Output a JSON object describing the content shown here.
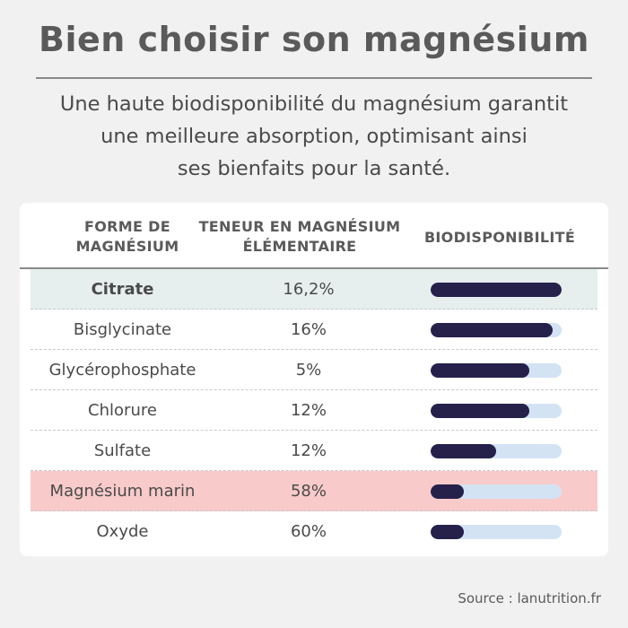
{
  "title": "Bien choisir son magnésium",
  "subtitle": [
    "Une haute biodisponibilité du magnésium garantit",
    "une meilleure absorption, optimisant ainsi",
    "ses bienfaits pour la santé."
  ],
  "table": {
    "headers": {
      "col1": [
        "FORME DE",
        "MAGNÉSIUM"
      ],
      "col2": [
        "TENEUR EN MAGNÉSIUM",
        "ÉLÉMENTAIRE"
      ],
      "col3": "BIODISPONIBILITÉ"
    },
    "rows": [
      {
        "name": "Citrate",
        "value": "16,2%",
        "bioavailability": 1.0,
        "highlight": "#e6efee",
        "bold": true
      },
      {
        "name": "Bisglycinate",
        "value": "16%",
        "bioavailability": 0.93,
        "highlight": "",
        "bold": false
      },
      {
        "name": "Glycérophosphate",
        "value": "5%",
        "bioavailability": 0.75,
        "highlight": "",
        "bold": false
      },
      {
        "name": "Chlorure",
        "value": "12%",
        "bioavailability": 0.75,
        "highlight": "",
        "bold": false
      },
      {
        "name": "Sulfate",
        "value": "12%",
        "bioavailability": 0.5,
        "highlight": "",
        "bold": false
      },
      {
        "name": "Magnésium marin",
        "value": "58%",
        "bioavailability": 0.25,
        "highlight": "#f8caca",
        "bold": false
      },
      {
        "name": "Oxyde",
        "value": "60%",
        "bioavailability": 0.25,
        "highlight": "",
        "bold": false
      }
    ]
  },
  "colors": {
    "bar_fill": "#25214b",
    "bar_track": "#d3e3f4"
  },
  "source": "Source : lanutrition.fr"
}
